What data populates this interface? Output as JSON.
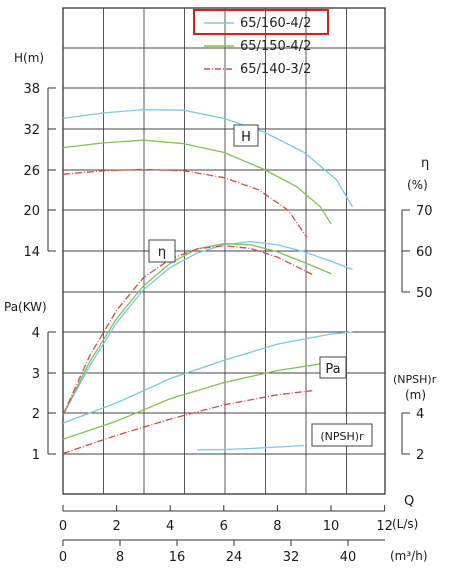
{
  "chart_data": {
    "type": "line",
    "legend": {
      "placement": "top-right",
      "highlighted": "65/160-4/2",
      "highlight_color": "#d42020"
    },
    "series": [
      {
        "name": "65/160-4/2",
        "color": "#79c8e8"
      },
      {
        "name": "65/150-4/2",
        "color": "#7dc451"
      },
      {
        "name": "65/140-3/2",
        "color": "#d84a48"
      }
    ],
    "axes": {
      "head": {
        "label": "H(m)",
        "ticks": [
          "38",
          "32",
          "26",
          "20",
          "14"
        ],
        "range": [
          8,
          38
        ]
      },
      "efficiency": {
        "label_symbol": "η",
        "label_unit": "(%)",
        "ticks": [
          "70",
          "60",
          "50"
        ],
        "range": [
          40,
          70
        ]
      },
      "power": {
        "label": "Pa(KW)",
        "ticks": [
          "4",
          "3",
          "2",
          "1"
        ],
        "range": [
          0,
          4
        ]
      },
      "npsh": {
        "label": "(NPSH)r",
        "label_unit": "(m)",
        "ticks": [
          "4",
          "2"
        ]
      },
      "flow_ls": {
        "symbol": "Q",
        "label": "(L/s)",
        "ticks": [
          "0",
          "2",
          "4",
          "6",
          "8",
          "10",
          "12"
        ],
        "range": [
          0,
          12
        ]
      },
      "flow_m3h": {
        "label": "(m³/h)",
        "ticks": [
          "0",
          "8",
          "16",
          "24",
          "32",
          "40"
        ],
        "range": [
          0,
          43.2
        ]
      }
    },
    "curve_labels": {
      "head": "H",
      "efficiency": "η",
      "power": "Pa",
      "npsh": "(NPSH)r"
    },
    "curves": {
      "head": [
        {
          "x": [
            0,
            1.5,
            3,
            4.5,
            6,
            7.5,
            9,
            10.2,
            10.8
          ],
          "y": [
            33.5,
            34.3,
            34.8,
            34.7,
            33.5,
            31.5,
            28.5,
            24.5,
            20.5
          ]
        },
        {
          "x": [
            0,
            1.5,
            3,
            4.5,
            6,
            7.5,
            8.7,
            9.6,
            10.0
          ],
          "y": [
            29.2,
            29.9,
            30.3,
            29.8,
            28.5,
            26,
            23.5,
            20.5,
            18
          ]
        },
        {
          "x": [
            0,
            1.5,
            3,
            4.5,
            6,
            7.3,
            8.4,
            9.1
          ],
          "y": [
            25.3,
            25.8,
            26.0,
            25.8,
            24.8,
            23,
            20,
            16
          ]
        }
      ],
      "efficiency": [
        {
          "x": [
            0,
            1,
            2,
            3,
            4,
            5,
            6,
            7,
            8,
            9,
            10,
            10.8
          ],
          "y": [
            20,
            32,
            42.5,
            50.5,
            56,
            59.5,
            61.5,
            62.3,
            61.5,
            59.8,
            57.5,
            55.5
          ]
        },
        {
          "x": [
            0,
            1,
            2,
            3,
            4,
            5,
            6,
            7,
            8,
            9,
            10
          ],
          "y": [
            20,
            33,
            43.5,
            51.5,
            57,
            60.5,
            61.8,
            61.5,
            59.8,
            57.2,
            54.5
          ]
        },
        {
          "x": [
            0,
            1,
            2,
            3,
            4,
            5,
            6,
            7,
            8,
            9.3
          ],
          "y": [
            20,
            34.5,
            45.5,
            53.5,
            58,
            60.5,
            61.3,
            60.6,
            58.5,
            54.3
          ]
        }
      ],
      "power": [
        {
          "x": [
            0,
            2,
            4,
            6,
            8,
            10,
            10.8
          ],
          "y": [
            1.75,
            2.25,
            2.85,
            3.3,
            3.7,
            3.95,
            4.0
          ]
        },
        {
          "x": [
            0,
            2,
            4,
            6,
            8,
            10
          ],
          "y": [
            1.35,
            1.8,
            2.35,
            2.75,
            3.05,
            3.25
          ]
        },
        {
          "x": [
            0,
            2,
            4,
            6,
            8,
            9.3
          ],
          "y": [
            1.0,
            1.45,
            1.85,
            2.2,
            2.45,
            2.55
          ]
        }
      ],
      "npsh": [
        {
          "x": [
            5,
            6,
            7,
            8,
            9
          ],
          "y": [
            1.0,
            1.05,
            1.15,
            1.3,
            1.45
          ]
        }
      ]
    }
  }
}
